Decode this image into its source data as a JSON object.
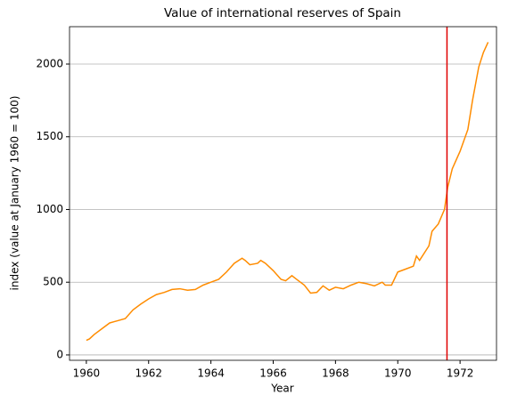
{
  "chart_data": {
    "type": "line",
    "title": "Value of international reserves of Spain",
    "xlabel": "Year",
    "ylabel": "index (value at January 1960 = 100)",
    "x": [
      1960.0,
      1960.1,
      1960.25,
      1960.5,
      1960.75,
      1961.0,
      1961.25,
      1961.5,
      1961.75,
      1962.0,
      1962.25,
      1962.5,
      1962.75,
      1963.0,
      1963.25,
      1963.5,
      1963.75,
      1964.0,
      1964.25,
      1964.5,
      1964.75,
      1965.0,
      1965.1,
      1965.25,
      1965.5,
      1965.6,
      1965.75,
      1966.0,
      1966.25,
      1966.4,
      1966.6,
      1966.75,
      1967.0,
      1967.2,
      1967.4,
      1967.6,
      1967.8,
      1968.0,
      1968.25,
      1968.5,
      1968.75,
      1969.0,
      1969.25,
      1969.5,
      1969.6,
      1969.8,
      1970.0,
      1970.25,
      1970.5,
      1970.6,
      1970.7,
      1971.0,
      1971.1,
      1971.3,
      1971.5,
      1971.6,
      1971.75,
      1972.0,
      1972.25,
      1972.4,
      1972.6,
      1972.75,
      1972.9
    ],
    "series": [
      {
        "name": "index",
        "color": "#ff8c00",
        "values": [
          100,
          110,
          140,
          180,
          220,
          235,
          250,
          310,
          350,
          385,
          415,
          430,
          450,
          455,
          445,
          450,
          480,
          500,
          520,
          570,
          630,
          665,
          650,
          620,
          630,
          650,
          630,
          580,
          520,
          510,
          545,
          520,
          480,
          425,
          430,
          475,
          445,
          465,
          455,
          480,
          500,
          490,
          475,
          500,
          480,
          480,
          570,
          590,
          610,
          680,
          650,
          750,
          850,
          900,
          1000,
          1150,
          1280,
          1400,
          1550,
          1750,
          1980,
          2080,
          2150
        ]
      }
    ],
    "vline": {
      "x": 1971.58,
      "color": "#e00000"
    },
    "xlim": [
      1959.46,
      1973.17
    ],
    "xticks": [
      1960,
      1962,
      1964,
      1966,
      1968,
      1970,
      1972
    ],
    "ylim": [
      -37,
      2257
    ],
    "yticks": [
      0,
      500,
      1000,
      1500,
      2000
    ],
    "grid": "y"
  }
}
